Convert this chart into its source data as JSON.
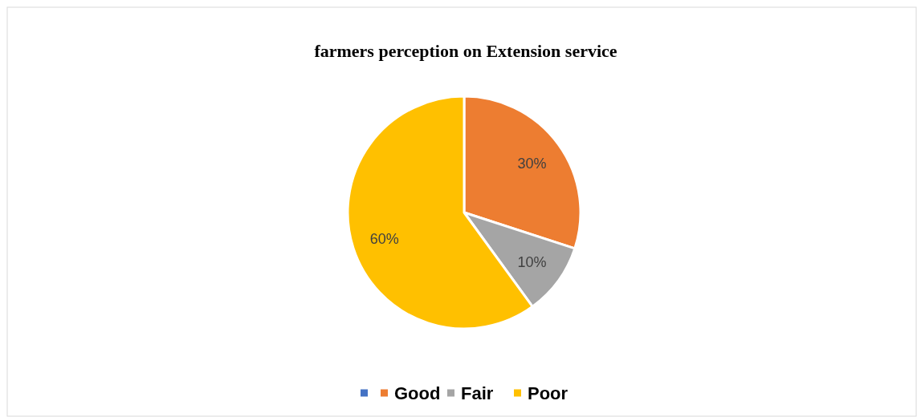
{
  "chart_data": {
    "type": "pie",
    "title": "farmers perception on Extension service",
    "categories": [
      null,
      "Good",
      "Fair",
      "Poor"
    ],
    "values": [
      0,
      30,
      10,
      60
    ],
    "colors": [
      "#4472c4",
      "#ed7d31",
      "#a5a5a5",
      "#ffc000"
    ],
    "value_labels": [
      null,
      "30%",
      "10%",
      "60%"
    ],
    "legend": "bottom"
  }
}
